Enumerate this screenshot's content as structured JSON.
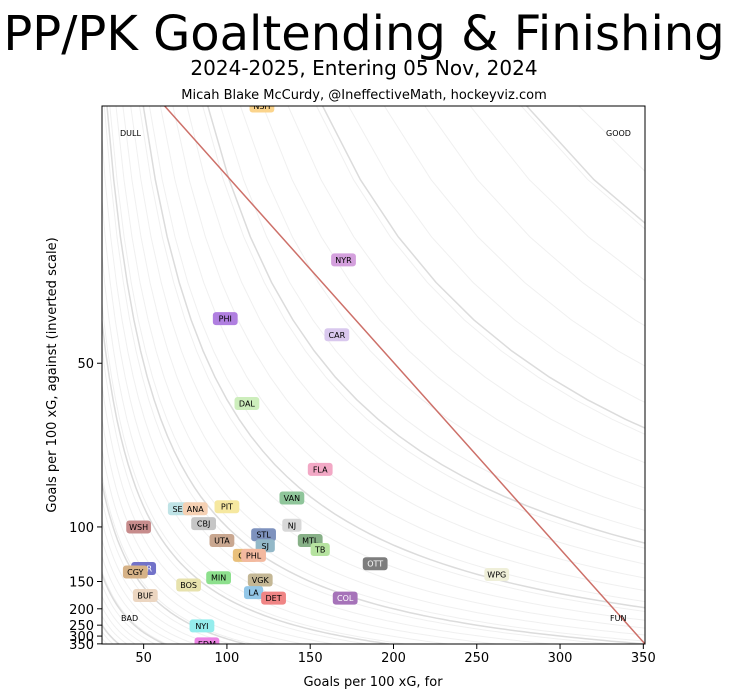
{
  "title": "PP/PK Goaltending & Finishing",
  "subtitle": "2024-2025, Entering 05 Nov, 2024",
  "byline": "Micah Blake McCurdy, @IneffectiveMath, hockeyviz.com",
  "chart_data": {
    "type": "scatter",
    "xlabel": "Goals per 100 xG, for",
    "ylabel": "Goals per 100 xG, against (inverted scale)",
    "xlim": [
      25,
      351
    ],
    "ylim": [
      28,
      351
    ],
    "y_scale": "reciprocal",
    "y_inverted": true,
    "xticks": [
      50,
      100,
      150,
      200,
      250,
      300,
      350
    ],
    "yticks": [
      50,
      100,
      150,
      200,
      250,
      300,
      350
    ],
    "corner_labels": {
      "top_left": "DULL",
      "top_right": "GOOD",
      "bottom_left": "BAD",
      "bottom_right": "FUN"
    },
    "diagonal_color": "#cd7069",
    "teams": [
      {
        "label": "NSH",
        "x": 121,
        "y": 28,
        "color": "#fbd48c"
      },
      {
        "label": "NYR",
        "x": 170,
        "y": 38,
        "color": "#d4a0dd"
      },
      {
        "label": "CAR",
        "x": 166,
        "y": 46,
        "color": "#d9c8ee"
      },
      {
        "label": "PHI",
        "x": 99,
        "y": 44,
        "color": "#b07fe0"
      },
      {
        "label": "DAL",
        "x": 112,
        "y": 57,
        "color": "#cdeebc"
      },
      {
        "label": "FLA",
        "x": 156,
        "y": 74,
        "color": "#f2a8c5"
      },
      {
        "label": "VAN",
        "x": 139,
        "y": 85,
        "color": "#8fc59a"
      },
      {
        "label": "PIT",
        "x": 100,
        "y": 89,
        "color": "#f6e8a0"
      },
      {
        "label": "SEA",
        "x": 72,
        "y": 90,
        "color": "#bfe3e6"
      },
      {
        "label": "ANA",
        "x": 81,
        "y": 90,
        "color": "#f5d0b3"
      },
      {
        "label": "CBJ",
        "x": 86,
        "y": 98,
        "color": "#c6c6c6"
      },
      {
        "label": "WSH",
        "x": 47,
        "y": 100,
        "color": "#c78c8c"
      },
      {
        "label": "NJ",
        "x": 139,
        "y": 99,
        "color": "#d8d8d8"
      },
      {
        "label": "STL",
        "x": 122,
        "y": 105,
        "color": "#7e92be"
      },
      {
        "label": "UTA",
        "x": 97,
        "y": 109,
        "color": "#c9a790"
      },
      {
        "label": "MTL",
        "x": 150,
        "y": 109,
        "color": "#87b087"
      },
      {
        "label": "SJ",
        "x": 123,
        "y": 113,
        "color": "#93b8c8"
      },
      {
        "label": "TB",
        "x": 156,
        "y": 116,
        "color": "#b6e3a0"
      },
      {
        "label": "CHI",
        "x": 111,
        "y": 121,
        "color": "#e9c07b"
      },
      {
        "label": "PHL",
        "x": 116,
        "y": 121,
        "color": "#f3b9a0"
      },
      {
        "label": "OTT",
        "x": 189,
        "y": 129,
        "color": "#7d7d7d"
      },
      {
        "label": "TOR",
        "x": 50,
        "y": 134,
        "color": "#7272c9"
      },
      {
        "label": "CGY",
        "x": 45,
        "y": 138,
        "color": "#d6b287"
      },
      {
        "label": "WPG",
        "x": 262,
        "y": 141,
        "color": "#efefd9"
      },
      {
        "label": "MIN",
        "x": 95,
        "y": 145,
        "color": "#8de08d"
      },
      {
        "label": "VGK",
        "x": 120,
        "y": 148,
        "color": "#c4b795"
      },
      {
        "label": "BOS",
        "x": 77,
        "y": 155,
        "color": "#e7e2ad"
      },
      {
        "label": "LA",
        "x": 116,
        "y": 167,
        "color": "#93c7e8"
      },
      {
        "label": "BUF",
        "x": 51,
        "y": 172,
        "color": "#ecd6c1"
      },
      {
        "label": "DET",
        "x": 128,
        "y": 177,
        "color": "#f08585"
      },
      {
        "label": "COL",
        "x": 171,
        "y": 177,
        "color": "#a673b9"
      },
      {
        "label": "NYI",
        "x": 85,
        "y": 253,
        "color": "#95eded"
      },
      {
        "label": "EDM",
        "x": 88,
        "y": 350,
        "color": "#ec83e4"
      }
    ]
  }
}
